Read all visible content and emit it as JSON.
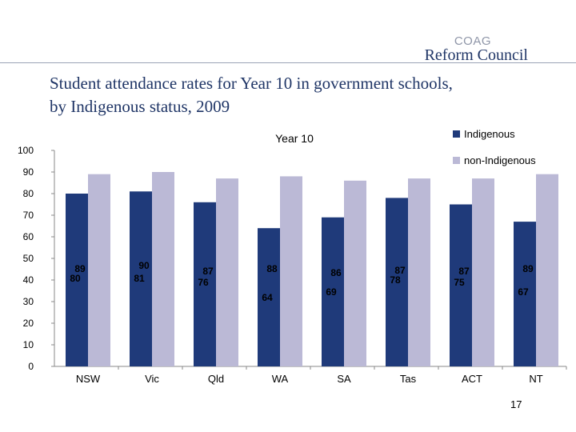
{
  "logo": {
    "line1": "COAG",
    "line2": "Reform Council"
  },
  "slide": {
    "title_line1": "Student attendance rates for Year 10 in government schools,",
    "title_line2": "by Indigenous status, 2009",
    "page_number": "17"
  },
  "colors": {
    "indigenous": "#1f3a7a",
    "non_indigenous": "#bbb9d6",
    "accent": "#1f3566"
  },
  "chart_data": {
    "type": "bar",
    "title": "Year 10",
    "categories": [
      "NSW",
      "Vic",
      "Qld",
      "WA",
      "SA",
      "Tas",
      "ACT",
      "NT"
    ],
    "series": [
      {
        "name": "Indigenous",
        "values": [
          80,
          81,
          76,
          64,
          69,
          78,
          75,
          67
        ]
      },
      {
        "name": "non-Indigenous",
        "values": [
          89,
          90,
          87,
          88,
          86,
          87,
          87,
          89
        ]
      }
    ],
    "data_labels": {
      "Indigenous": [
        "80",
        "81",
        "76",
        "64",
        "69",
        "78",
        "75",
        "67"
      ],
      "non-Indigenous": [
        "89",
        "90",
        "87",
        "88",
        "86",
        "87",
        "87",
        "89"
      ]
    },
    "y_ticks": [
      0,
      10,
      20,
      30,
      40,
      50,
      60,
      70,
      80,
      90,
      100
    ],
    "ylim": [
      0,
      100
    ],
    "legend_position": "top-right",
    "grid": false
  }
}
